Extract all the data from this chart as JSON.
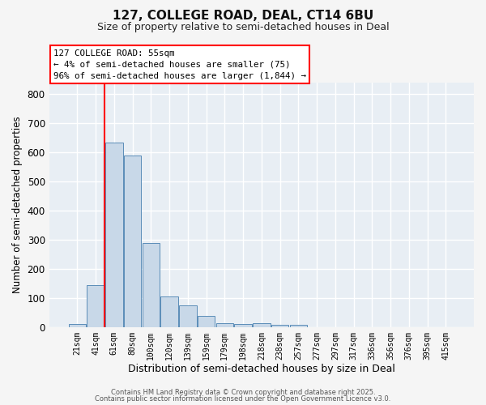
{
  "title": "127, COLLEGE ROAD, DEAL, CT14 6BU",
  "subtitle": "Size of property relative to semi-detached houses in Deal",
  "xlabel": "Distribution of semi-detached houses by size in Deal",
  "ylabel": "Number of semi-detached properties",
  "bar_color": "#c8d8e8",
  "bar_edge_color": "#5b8db8",
  "categories": [
    "21sqm",
    "41sqm",
    "61sqm",
    "80sqm",
    "100sqm",
    "120sqm",
    "139sqm",
    "159sqm",
    "179sqm",
    "198sqm",
    "218sqm",
    "238sqm",
    "257sqm",
    "277sqm",
    "297sqm",
    "317sqm",
    "336sqm",
    "356sqm",
    "376sqm",
    "395sqm",
    "415sqm"
  ],
  "values": [
    10,
    145,
    635,
    590,
    290,
    105,
    75,
    38,
    14,
    10,
    13,
    7,
    8,
    0,
    0,
    0,
    0,
    0,
    0,
    0,
    0
  ],
  "red_line_index": 2,
  "annotation_text": "127 COLLEGE ROAD: 55sqm\n← 4% of semi-detached houses are smaller (75)\n96% of semi-detached houses are larger (1,844) →",
  "ylim": [
    0,
    840
  ],
  "yticks": [
    0,
    100,
    200,
    300,
    400,
    500,
    600,
    700,
    800
  ],
  "background_color": "#e8eef4",
  "fig_background": "#f5f5f5",
  "grid_color": "#ffffff",
  "footer_line1": "Contains HM Land Registry data © Crown copyright and database right 2025.",
  "footer_line2": "Contains public sector information licensed under the Open Government Licence v3.0."
}
